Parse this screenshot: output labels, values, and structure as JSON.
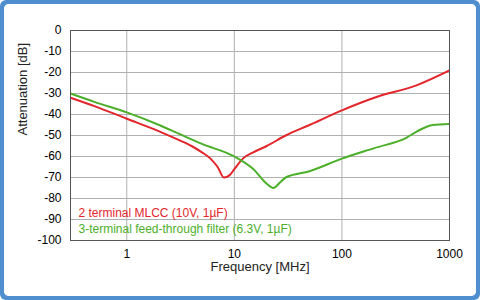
{
  "chart_data": {
    "type": "line",
    "x_label": "Frequency [MHz]",
    "y_label": "Attenuation [dB]",
    "log": "x",
    "grid": true,
    "legend": "bottom-left",
    "xlim": [
      0.3,
      1000
    ],
    "xticks": [
      1,
      10,
      100,
      1000
    ],
    "ylim": [
      -100,
      0
    ],
    "yticks": [
      0,
      -10,
      -20,
      -30,
      -40,
      -50,
      -60,
      -70,
      -80,
      -90,
      -100
    ],
    "series": [
      {
        "name": "2 terminal MLCC (10V, 1µF)",
        "color": "#e3262b",
        "x": [
          0.3,
          0.5,
          1,
          2,
          3,
          4,
          5,
          6,
          7,
          8,
          9,
          10,
          12,
          15,
          20,
          30,
          50,
          100,
          200,
          500,
          1000
        ],
        "values": [
          -32,
          -36,
          -42,
          -48,
          -52,
          -55,
          -58,
          -61,
          -65,
          -70,
          -69,
          -66,
          -61,
          -58,
          -55,
          -50,
          -45,
          -38,
          -32,
          -26,
          -19
        ]
      },
      {
        "name": "3-terminal feed-through filter (6.3V, 1µF)",
        "color": "#4caf2a",
        "x": [
          0.3,
          0.5,
          1,
          2,
          3,
          5,
          10,
          15,
          20,
          23,
          27,
          30,
          50,
          100,
          200,
          400,
          500,
          700,
          1000
        ],
        "values": [
          -30,
          -34,
          -39,
          -45,
          -49,
          -54,
          -60,
          -66,
          -73,
          -75,
          -72,
          -70,
          -67,
          -61,
          -56,
          -51,
          -48,
          -45,
          -44.5
        ]
      }
    ]
  }
}
